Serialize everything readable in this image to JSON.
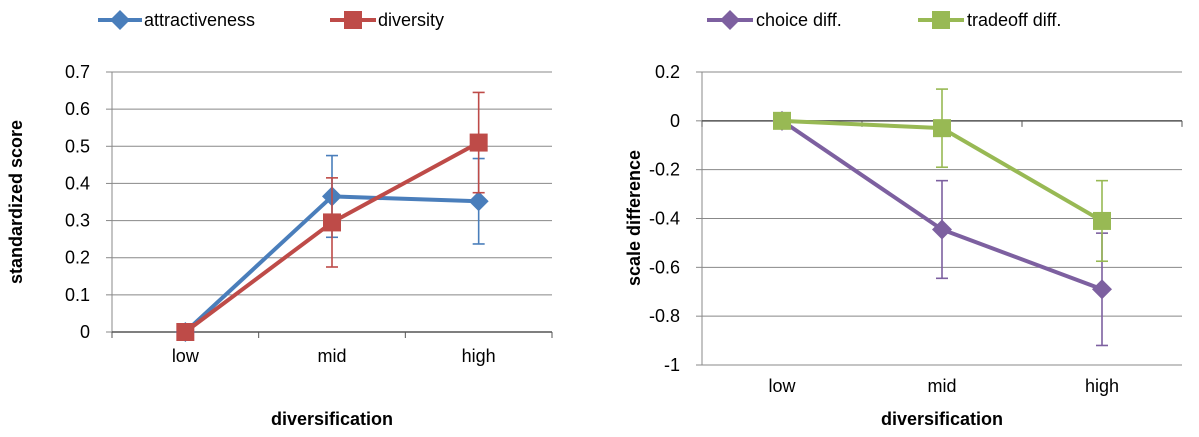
{
  "chart_data": [
    {
      "type": "line",
      "title": "",
      "xlabel": "diversification",
      "ylabel": "standardized score",
      "categories": [
        "low",
        "mid",
        "high"
      ],
      "ylim": [
        0,
        0.7
      ],
      "yticks": [
        0,
        0.1,
        0.2,
        0.3,
        0.4,
        0.5,
        0.6,
        0.7
      ],
      "ytick_labels": [
        "0",
        "0.1",
        "0.2",
        "0.3",
        "0.4",
        "0.5",
        "0.6",
        "0.7"
      ],
      "grid": true,
      "legend": "top",
      "series": [
        {
          "name": "attractiveness",
          "color": "#4a7ebb",
          "marker": "diamond",
          "values": [
            0,
            0.365,
            0.352
          ],
          "err": [
            0,
            0.11,
            0.115
          ]
        },
        {
          "name": "diversity",
          "color": "#be4b48",
          "marker": "square",
          "values": [
            0,
            0.295,
            0.51
          ],
          "err": [
            0,
            0.12,
            0.135
          ]
        }
      ]
    },
    {
      "type": "line",
      "title": "",
      "xlabel": "diversification",
      "ylabel": "scale difference",
      "categories": [
        "low",
        "mid",
        "high"
      ],
      "ylim": [
        -1,
        0.2
      ],
      "yticks": [
        -1,
        -0.8,
        -0.6,
        -0.4,
        -0.2,
        0,
        0.2
      ],
      "ytick_labels": [
        "-1",
        "-0.8",
        "-0.6",
        "-0.4",
        "-0.2",
        "0",
        "0.2"
      ],
      "grid": true,
      "legend": "top",
      "series": [
        {
          "name": "choice diff.",
          "color": "#7d60a0",
          "marker": "diamond",
          "values": [
            0,
            -0.445,
            -0.69
          ],
          "err": [
            0,
            0.2,
            0.23
          ]
        },
        {
          "name": "tradeoff diff.",
          "color": "#98b954",
          "marker": "square",
          "values": [
            0,
            -0.03,
            -0.41
          ],
          "err": [
            0,
            0.16,
            0.165
          ]
        }
      ]
    }
  ]
}
